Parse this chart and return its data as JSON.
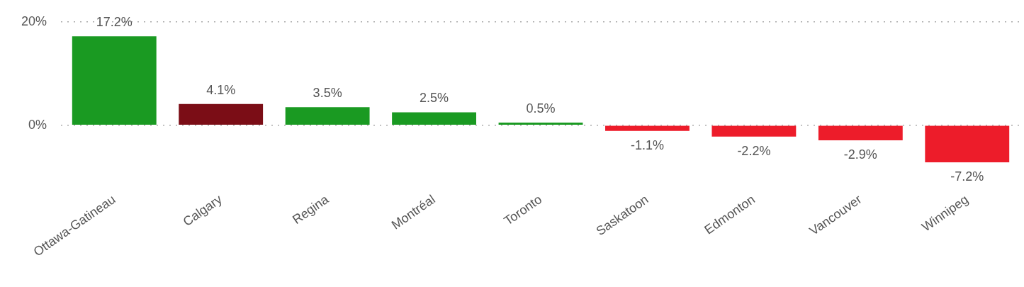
{
  "chart_data": {
    "type": "bar",
    "categories": [
      "Ottawa-Gatineau",
      "Calgary",
      "Regina",
      "Montréal",
      "Toronto",
      "Saskatoon",
      "Edmonton",
      "Vancouver",
      "Winnipeg"
    ],
    "values": [
      17.2,
      4.1,
      3.5,
      2.5,
      0.5,
      -1.1,
      -2.2,
      -2.9,
      -7.2
    ],
    "colors": [
      "#1a9a22",
      "#7b0d16",
      "#1a9a22",
      "#1a9a22",
      "#1a9a22",
      "#ed1c2a",
      "#ed1c2a",
      "#ed1c2a",
      "#ed1c2a"
    ],
    "value_labels": [
      "17.2%",
      "4.1%",
      "3.5%",
      "2.5%",
      "0.5%",
      "-1.1%",
      "-2.2%",
      "-2.9%",
      "-7.2%"
    ],
    "ylim": [
      -7.2,
      20
    ],
    "yticks": [
      {
        "value": 0,
        "label": "0%"
      },
      {
        "value": 20,
        "label": "20%"
      }
    ],
    "grid": "y",
    "legend": false
  }
}
